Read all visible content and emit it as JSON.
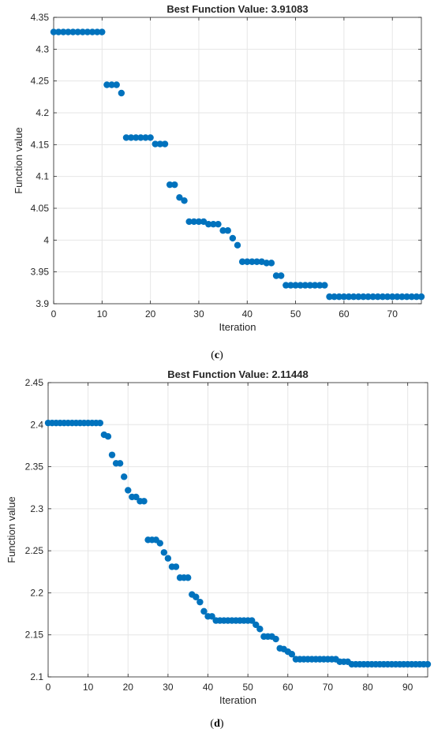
{
  "chart_data": [
    {
      "type": "scatter",
      "title": "Best Function Value: 3.91083",
      "xlabel": "Iteration",
      "ylabel": "Function value",
      "xlim": [
        0,
        76
      ],
      "ylim": [
        3.9,
        4.35
      ],
      "xticks": [
        0,
        10,
        20,
        30,
        40,
        50,
        60,
        70
      ],
      "yticks": [
        3.9,
        3.95,
        4.0,
        4.05,
        4.1,
        4.15,
        4.2,
        4.25,
        4.3,
        4.35
      ],
      "ytick_labels": [
        "3.9",
        "3.95",
        "4",
        "4.05",
        "4.1",
        "4.15",
        "4.2",
        "4.25",
        "4.3",
        "4.35"
      ],
      "grid": true,
      "color": "#0072BD",
      "caption_letter": "c",
      "x": [
        0,
        1,
        2,
        3,
        4,
        5,
        6,
        7,
        8,
        9,
        10,
        11,
        12,
        13,
        14,
        15,
        16,
        17,
        18,
        19,
        20,
        21,
        22,
        23,
        24,
        25,
        26,
        27,
        28,
        29,
        30,
        31,
        32,
        33,
        34,
        35,
        36,
        37,
        38,
        39,
        40,
        41,
        42,
        43,
        44,
        45,
        46,
        47,
        48,
        49,
        50,
        51,
        52,
        53,
        54,
        55,
        56,
        57,
        58,
        59,
        60,
        61,
        62,
        63,
        64,
        65,
        66,
        67,
        68,
        69,
        70,
        71,
        72,
        73,
        74,
        75,
        76
      ],
      "y": [
        4.327,
        4.327,
        4.327,
        4.327,
        4.327,
        4.327,
        4.327,
        4.327,
        4.327,
        4.327,
        4.327,
        4.244,
        4.244,
        4.244,
        4.231,
        4.161,
        4.161,
        4.161,
        4.161,
        4.161,
        4.161,
        4.151,
        4.151,
        4.151,
        4.087,
        4.087,
        4.067,
        4.062,
        4.029,
        4.029,
        4.029,
        4.029,
        4.025,
        4.025,
        4.025,
        4.015,
        4.015,
        4.003,
        3.992,
        3.966,
        3.966,
        3.966,
        3.966,
        3.966,
        3.964,
        3.964,
        3.944,
        3.944,
        3.929,
        3.929,
        3.929,
        3.929,
        3.929,
        3.929,
        3.929,
        3.929,
        3.929,
        3.911,
        3.911,
        3.911,
        3.911,
        3.911,
        3.911,
        3.911,
        3.911,
        3.911,
        3.911,
        3.911,
        3.911,
        3.911,
        3.911,
        3.911,
        3.911,
        3.911,
        3.911,
        3.911,
        3.911
      ]
    },
    {
      "type": "scatter",
      "title": "Best Function Value: 2.11448",
      "xlabel": "Iteration",
      "ylabel": "Function value",
      "xlim": [
        0,
        95
      ],
      "ylim": [
        2.1,
        2.45
      ],
      "xticks": [
        0,
        10,
        20,
        30,
        40,
        50,
        60,
        70,
        80,
        90
      ],
      "yticks": [
        2.1,
        2.15,
        2.2,
        2.25,
        2.3,
        2.35,
        2.4,
        2.45
      ],
      "ytick_labels": [
        "2.1",
        "2.15",
        "2.2",
        "2.25",
        "2.3",
        "2.35",
        "2.4",
        "2.45"
      ],
      "grid": true,
      "color": "#0072BD",
      "caption_letter": "d",
      "x": [
        0,
        1,
        2,
        3,
        4,
        5,
        6,
        7,
        8,
        9,
        10,
        11,
        12,
        13,
        14,
        15,
        16,
        17,
        18,
        19,
        20,
        21,
        22,
        23,
        24,
        25,
        26,
        27,
        28,
        29,
        30,
        31,
        32,
        33,
        34,
        35,
        36,
        37,
        38,
        39,
        40,
        41,
        42,
        43,
        44,
        45,
        46,
        47,
        48,
        49,
        50,
        51,
        52,
        53,
        54,
        55,
        56,
        57,
        58,
        59,
        60,
        61,
        62,
        63,
        64,
        65,
        66,
        67,
        68,
        69,
        70,
        71,
        72,
        73,
        74,
        75,
        76,
        77,
        78,
        79,
        80,
        81,
        82,
        83,
        84,
        85,
        86,
        87,
        88,
        89,
        90,
        91,
        92,
        93,
        94,
        95
      ],
      "y": [
        2.402,
        2.402,
        2.402,
        2.402,
        2.402,
        2.402,
        2.402,
        2.402,
        2.402,
        2.402,
        2.402,
        2.402,
        2.402,
        2.402,
        2.388,
        2.386,
        2.364,
        2.354,
        2.354,
        2.338,
        2.322,
        2.314,
        2.314,
        2.309,
        2.309,
        2.263,
        2.263,
        2.263,
        2.259,
        2.248,
        2.241,
        2.231,
        2.231,
        2.218,
        2.218,
        2.218,
        2.198,
        2.195,
        2.189,
        2.178,
        2.172,
        2.172,
        2.167,
        2.167,
        2.167,
        2.167,
        2.167,
        2.167,
        2.167,
        2.167,
        2.167,
        2.167,
        2.162,
        2.157,
        2.148,
        2.148,
        2.148,
        2.145,
        2.134,
        2.133,
        2.13,
        2.127,
        2.121,
        2.121,
        2.121,
        2.121,
        2.121,
        2.121,
        2.121,
        2.121,
        2.121,
        2.121,
        2.121,
        2.118,
        2.118,
        2.118,
        2.115,
        2.115,
        2.115,
        2.115,
        2.115,
        2.115,
        2.115,
        2.115,
        2.115,
        2.115,
        2.115,
        2.115,
        2.115,
        2.115,
        2.115,
        2.115,
        2.115,
        2.115,
        2.115,
        2.115
      ]
    }
  ]
}
